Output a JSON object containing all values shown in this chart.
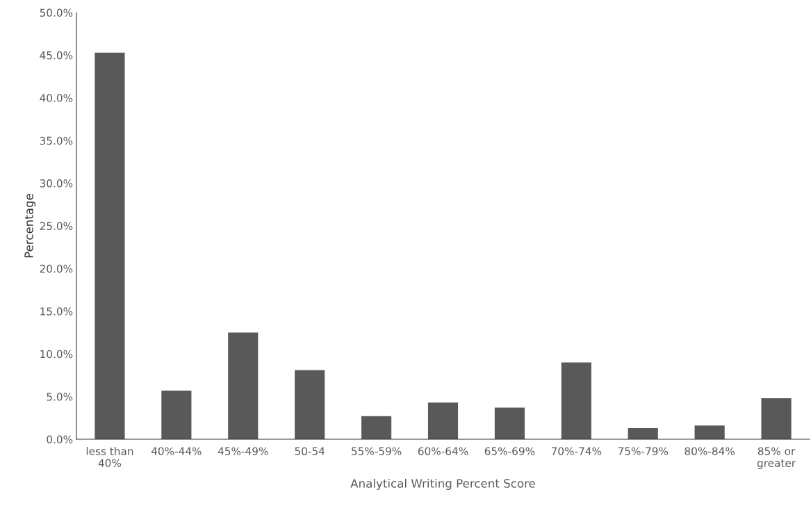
{
  "chart_data": {
    "type": "bar",
    "xlabel": "Analytical Writing Percent Score",
    "ylabel": "Percentage",
    "categories": [
      "less than\n40%",
      "40%-44%",
      "45%-49%",
      "50-54",
      "55%-59%",
      "60%-64%",
      "65%-69%",
      "70%-74%",
      "75%-79%",
      "80%-84%",
      "85% or\ngreater"
    ],
    "values": [
      45.3,
      5.7,
      12.5,
      8.1,
      2.7,
      4.3,
      3.7,
      9.0,
      1.3,
      1.6,
      4.8
    ],
    "color": "#595959",
    "ylim": [
      0,
      50
    ],
    "yticks": [
      {
        "value": 0,
        "label": "0.0%"
      },
      {
        "value": 5,
        "label": "5.0%"
      },
      {
        "value": 10,
        "label": "10.0%"
      },
      {
        "value": 15,
        "label": "15.0%"
      },
      {
        "value": 20,
        "label": "20.0%"
      },
      {
        "value": 25,
        "label": "25.0%"
      },
      {
        "value": 30,
        "label": "30.0%"
      },
      {
        "value": 35,
        "label": "35.0%"
      },
      {
        "value": 40,
        "label": "40.0%"
      },
      {
        "value": 45,
        "label": "45.0%"
      },
      {
        "value": 50,
        "label": "50.0%"
      }
    ],
    "grid": false
  }
}
